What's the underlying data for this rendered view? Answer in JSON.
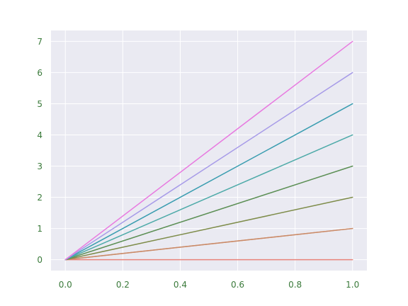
{
  "chart_data": {
    "type": "line",
    "title": "",
    "xlabel": "",
    "ylabel": "",
    "xlim": [
      -0.05,
      1.05
    ],
    "ylim": [
      -0.35,
      7.35
    ],
    "grid": true,
    "legend": "none",
    "background_color": "#EAEAF2",
    "grid_color": "#FFFFFF",
    "tick_label_color": "#3A7A3A",
    "xticks": [
      0.0,
      0.2,
      0.4,
      0.6,
      0.8,
      1.0
    ],
    "xtick_labels": [
      "0.0",
      "0.2",
      "0.4",
      "0.6",
      "0.8",
      "1.0"
    ],
    "yticks": [
      0,
      1,
      2,
      3,
      4,
      5,
      6,
      7
    ],
    "ytick_labels": [
      "0",
      "1",
      "2",
      "3",
      "4",
      "5",
      "6",
      "7"
    ],
    "x": [
      0.0,
      1.0
    ],
    "series": [
      {
        "values": [
          0,
          0
        ],
        "color": "#E8837A"
      },
      {
        "values": [
          0,
          1
        ],
        "color": "#E39A5E"
      },
      {
        "values": [
          0,
          1
        ],
        "color": "#C98A6A"
      },
      {
        "values": [
          0,
          2
        ],
        "color": "#7E8C4A"
      },
      {
        "values": [
          0,
          3
        ],
        "color": "#5C8F55"
      },
      {
        "values": [
          0,
          4
        ],
        "color": "#4DAAA8"
      },
      {
        "values": [
          0,
          5
        ],
        "color": "#3A9DB0"
      },
      {
        "values": [
          0,
          6
        ],
        "color": "#A79BE8"
      },
      {
        "values": [
          0,
          7
        ],
        "color": "#E87AE0"
      }
    ]
  }
}
